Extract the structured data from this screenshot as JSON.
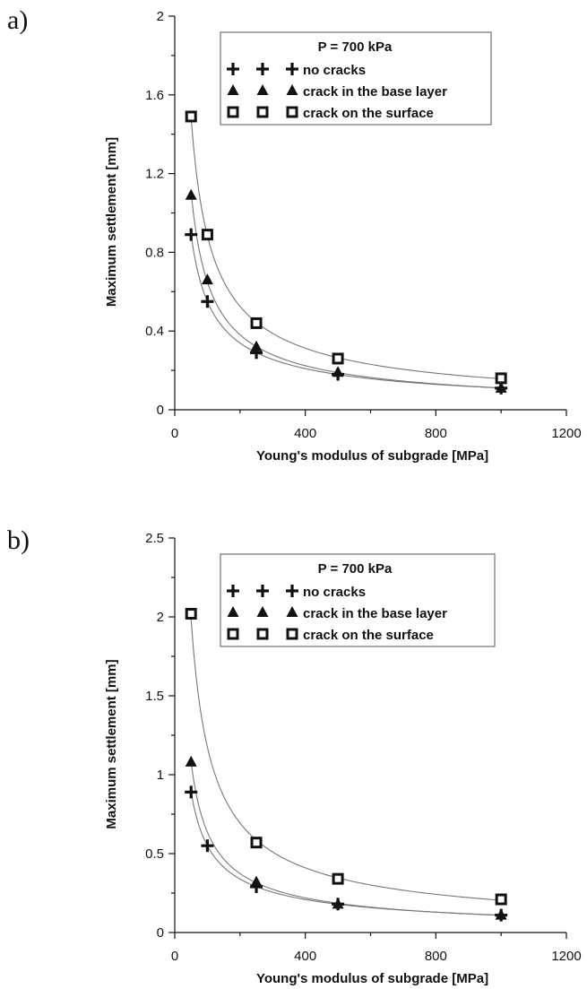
{
  "chart_data": [
    {
      "type": "scatter",
      "panel_label": "a)",
      "xlabel": "Young's modulus of subgrade [MPa]",
      "ylabel": "Maximum settlement [mm]",
      "xlim": [
        0,
        1200
      ],
      "ylim": [
        0,
        2
      ],
      "x_ticks": [
        "0",
        "400",
        "800",
        "1200"
      ],
      "y_ticks": [
        "0",
        "0.4",
        "0.8",
        "1.2",
        "1.6",
        "2"
      ],
      "legend": {
        "title": "P = 700 kPa",
        "position": "top-right"
      },
      "series": [
        {
          "name": "no cracks",
          "marker": "plus",
          "x": [
            50,
            100,
            250,
            500,
            1000
          ],
          "y": [
            0.89,
            0.55,
            0.29,
            0.18,
            0.11
          ]
        },
        {
          "name": "crack in the base layer",
          "marker": "triangle",
          "x": [
            50,
            100,
            250,
            500,
            1000
          ],
          "y": [
            1.09,
            0.66,
            0.32,
            0.19,
            0.11
          ]
        },
        {
          "name": "crack on the surface",
          "marker": "square",
          "x": [
            50,
            100,
            250,
            500,
            1000
          ],
          "y": [
            1.49,
            0.89,
            0.44,
            0.26,
            0.16
          ]
        }
      ]
    },
    {
      "type": "scatter",
      "panel_label": "b)",
      "xlabel": "Young's modulus of subgrade [MPa]",
      "ylabel": "Maximum settlement [mm]",
      "xlim": [
        0,
        1200
      ],
      "ylim": [
        0,
        2.5
      ],
      "x_ticks": [
        "0",
        "400",
        "800",
        "1200"
      ],
      "y_ticks": [
        "0",
        "0.5",
        "1",
        "1.5",
        "2",
        "2.5"
      ],
      "legend": {
        "title": "P = 700 kPa",
        "position": "top-right"
      },
      "series": [
        {
          "name": "no cracks",
          "marker": "plus",
          "x": [
            50,
            100,
            250,
            500,
            1000
          ],
          "y": [
            0.89,
            0.55,
            0.29,
            0.18,
            0.11
          ]
        },
        {
          "name": "crack in the base layer",
          "marker": "triangle",
          "x": [
            50,
            250,
            500,
            1000
          ],
          "y": [
            1.08,
            0.32,
            0.18,
            0.11
          ]
        },
        {
          "name": "crack on the surface",
          "marker": "square",
          "x": [
            50,
            250,
            500,
            1000
          ],
          "y": [
            2.02,
            0.57,
            0.34,
            0.21
          ]
        }
      ]
    }
  ]
}
